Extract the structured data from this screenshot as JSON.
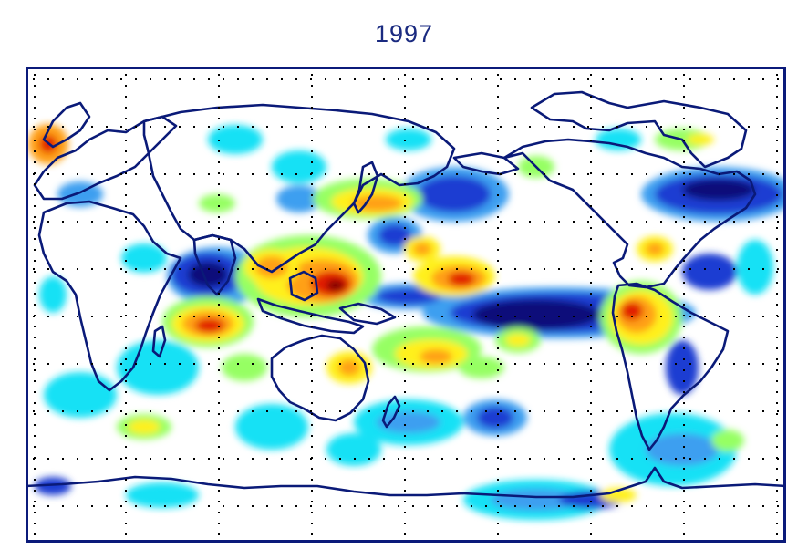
{
  "title": "1997",
  "colors": {
    "frame": "#0b1a7a",
    "coastline": "#0a1a78",
    "grid": "#000000",
    "background": "#ffffff",
    "strong_negative": "#08087a",
    "negative": "#1e3cd2",
    "mild_negative": "#3c9ff0",
    "weak_negative": "#19e1f5",
    "weak_positive": "#96ff64",
    "mild_positive": "#fff01e",
    "positive": "#ffa014",
    "strong_positive": "#e11e00",
    "extreme_positive": "#780000"
  }
}
